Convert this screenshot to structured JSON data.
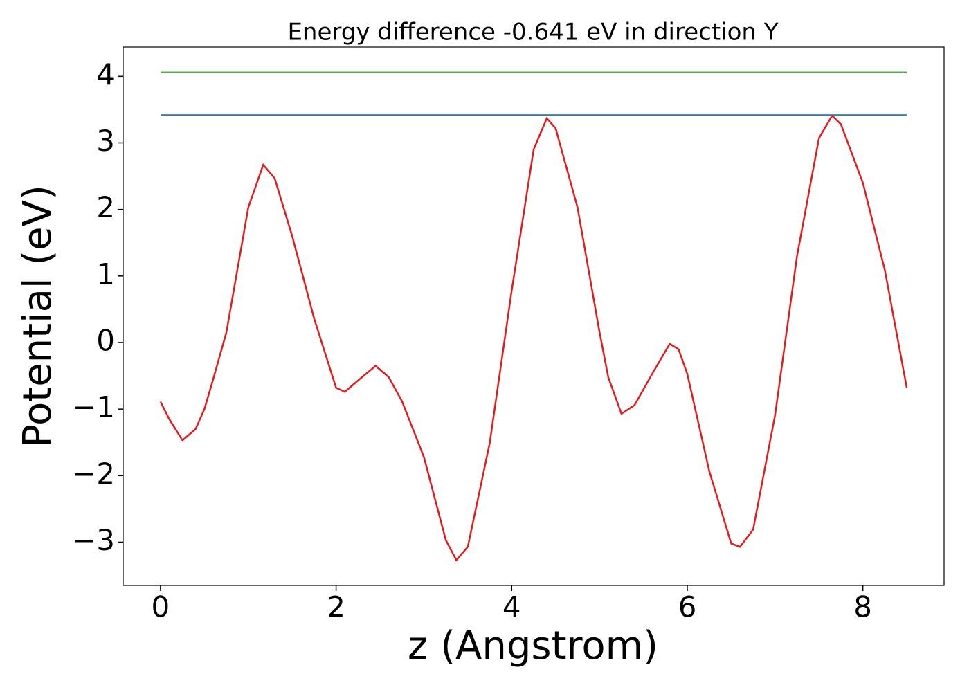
{
  "chart_data": {
    "type": "line",
    "title": "Energy difference -0.641 eV in direction Y",
    "xlabel": "z (Angstrom)",
    "ylabel": "Potential (eV)",
    "series": [
      {
        "color": "#e41a1c",
        "x": [
          0,
          0.1,
          0.25,
          0.4,
          0.5,
          0.6,
          0.75,
          1.0,
          1.17,
          1.3,
          1.5,
          1.75,
          2.0,
          2.1,
          2.25,
          2.45,
          2.6,
          2.75,
          3.0,
          3.25,
          3.37,
          3.5,
          3.75,
          4.0,
          4.25,
          4.4,
          4.5,
          4.75,
          5.0,
          5.1,
          5.25,
          5.4,
          5.6,
          5.8,
          5.9,
          6.0,
          6.25,
          6.5,
          6.6,
          6.75,
          7.0,
          7.25,
          7.5,
          7.65,
          7.75,
          8.0,
          8.25,
          8.5
        ],
        "values": [
          -0.89,
          -1.15,
          -1.47,
          -1.3,
          -1.0,
          -0.55,
          0.15,
          2.03,
          2.67,
          2.47,
          1.6,
          0.36,
          -0.68,
          -0.74,
          -0.57,
          -0.35,
          -0.52,
          -0.88,
          -1.72,
          -2.97,
          -3.27,
          -3.07,
          -1.51,
          0.78,
          2.9,
          3.37,
          3.22,
          2.03,
          0.16,
          -0.52,
          -1.07,
          -0.94,
          -0.47,
          -0.02,
          -0.1,
          -0.47,
          -1.93,
          -3.02,
          -3.07,
          -2.81,
          -1.09,
          1.3,
          3.07,
          3.41,
          3.28,
          2.4,
          1.09,
          -0.68
        ]
      },
      {
        "color": "#377eb8",
        "x": [
          0,
          8.5
        ],
        "values": [
          3.42,
          3.42
        ]
      },
      {
        "color": "#4daf4a",
        "x": [
          0,
          8.5
        ],
        "values": [
          4.06,
          4.06
        ]
      }
    ],
    "xlim": [
      -0.425,
      8.925
    ],
    "ylim": [
      -3.65,
      4.44
    ],
    "xticks": [
      0,
      2,
      4,
      6,
      8
    ],
    "yticks": [
      {
        "value": -3,
        "label": "−3"
      },
      {
        "value": -2,
        "label": "−2"
      },
      {
        "value": -1,
        "label": "−1"
      },
      0,
      1,
      2,
      3,
      4
    ]
  }
}
